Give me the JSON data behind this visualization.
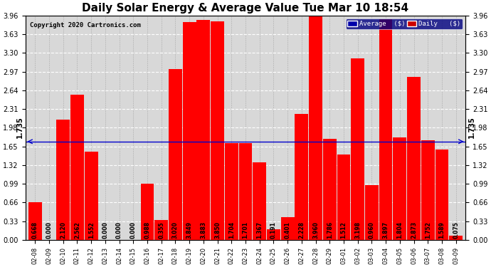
{
  "title": "Daily Solar Energy & Average Value Tue Mar 10 18:54",
  "copyright": "Copyright 2020 Cartronics.com",
  "categories": [
    "02-08",
    "02-09",
    "02-10",
    "02-11",
    "02-12",
    "02-13",
    "02-14",
    "02-15",
    "02-16",
    "02-17",
    "02-18",
    "02-19",
    "02-20",
    "02-21",
    "02-22",
    "02-23",
    "02-24",
    "02-25",
    "02-26",
    "02-27",
    "02-28",
    "02-29",
    "03-01",
    "03-02",
    "03-03",
    "03-04",
    "03-05",
    "03-06",
    "03-07",
    "03-08",
    "03-09"
  ],
  "values": [
    0.668,
    0.0,
    2.12,
    2.562,
    1.552,
    0.0,
    0.0,
    0.0,
    0.988,
    0.355,
    3.02,
    3.849,
    3.883,
    3.85,
    1.704,
    1.701,
    1.367,
    0.191,
    0.401,
    2.228,
    3.96,
    1.786,
    1.512,
    3.198,
    0.96,
    3.897,
    1.804,
    2.873,
    1.752,
    1.589,
    0.075
  ],
  "average": 1.735,
  "bar_color": "#ff0000",
  "avg_line_color": "#0000cc",
  "ylim_max": 3.96,
  "yticks": [
    0.0,
    0.33,
    0.66,
    0.99,
    1.32,
    1.65,
    1.98,
    2.31,
    2.64,
    2.97,
    3.3,
    3.63,
    3.96
  ],
  "background_color": "#ffffff",
  "plot_bg_color": "#ffffff",
  "grid_color": "#aaaaaa",
  "title_fontsize": 11,
  "legend_avg_bg": "#0000aa",
  "legend_daily_bg": "#cc0000"
}
